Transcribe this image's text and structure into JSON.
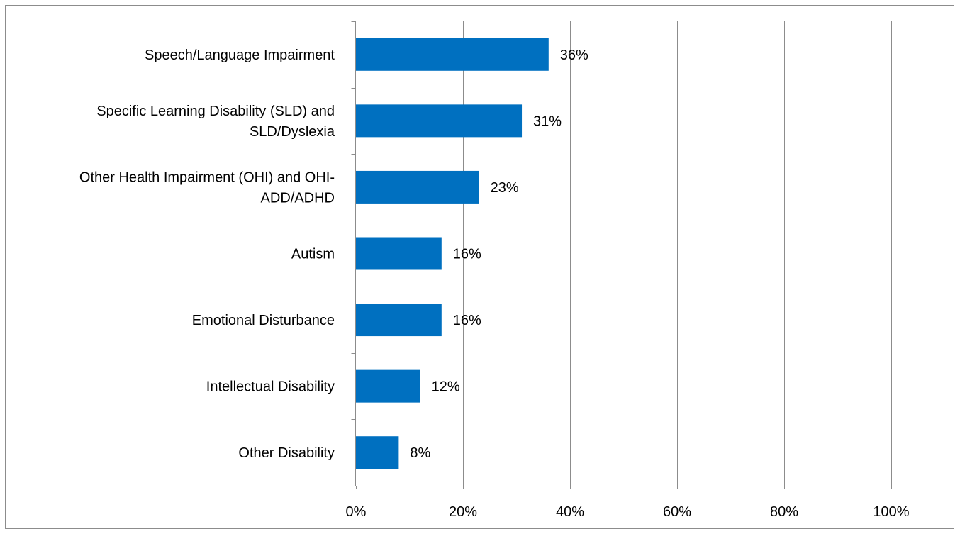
{
  "chart_data": {
    "type": "bar",
    "orientation": "horizontal",
    "categories": [
      [
        "Speech/Language Impairment"
      ],
      [
        "Specific Learning Disability (SLD) and",
        "SLD/Dyslexia"
      ],
      [
        "Other Health Impairment (OHI) and OHI-",
        "ADD/ADHD"
      ],
      [
        "Autism"
      ],
      [
        "Emotional Disturbance"
      ],
      [
        "Intellectual Disability"
      ],
      [
        "Other Disability"
      ]
    ],
    "values": [
      36,
      31,
      23,
      16,
      16,
      12,
      8
    ],
    "value_labels": [
      "36%",
      "31%",
      "23%",
      "16%",
      "16%",
      "12%",
      "8%"
    ],
    "x_ticks": [
      0,
      20,
      40,
      60,
      80,
      100
    ],
    "x_tick_labels": [
      "0%",
      "20%",
      "40%",
      "60%",
      "80%",
      "100%"
    ],
    "xlim": [
      0,
      100
    ],
    "title": "",
    "xlabel": "",
    "ylabel": "",
    "grid": "vertical",
    "legend": "none",
    "colors": {
      "bar": "#0070c0",
      "grid": "#8c8c8c",
      "frame": "#8c8c8c"
    }
  }
}
